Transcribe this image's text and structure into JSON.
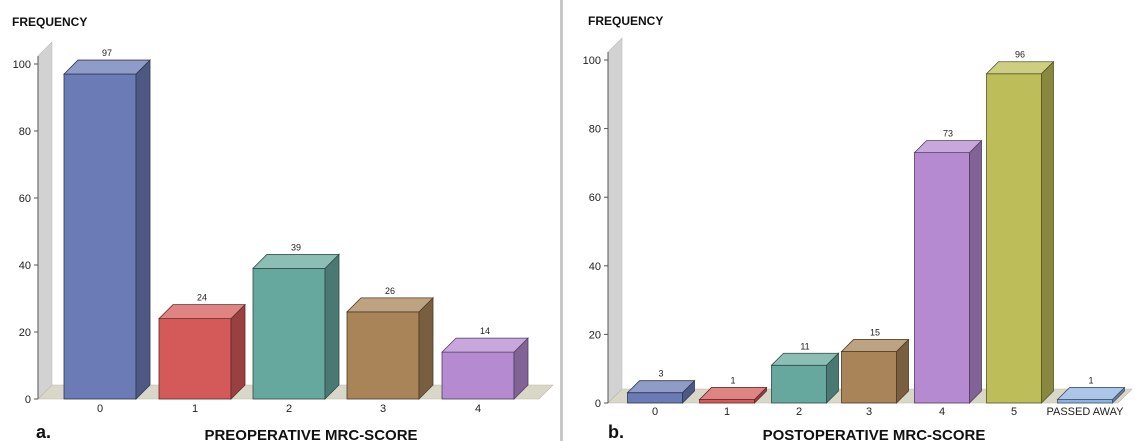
{
  "chart_data": [
    {
      "type": "bar",
      "panel_label": "a.",
      "title": "",
      "xlabel": "PREOPERATIVE MRC-SCORE",
      "ylabel": "FREQUENCY",
      "categories": [
        "0",
        "1",
        "2",
        "3",
        "4"
      ],
      "values": [
        97,
        24,
        39,
        26,
        14
      ],
      "data_labels": [
        "97",
        "24",
        "39",
        "26",
        "14"
      ],
      "colors": [
        "#6b7bb5",
        "#d45a5a",
        "#66a89e",
        "#a88458",
        "#b58ad1"
      ],
      "ylim": [
        0,
        100
      ],
      "yticks": [
        0,
        20,
        40,
        60,
        80,
        100
      ],
      "ytick_labels": [
        "0",
        "20",
        "40",
        "60",
        "80",
        "100"
      ],
      "grid": false,
      "style": "3d-bar"
    },
    {
      "type": "bar",
      "panel_label": "b.",
      "title": "",
      "xlabel": "POSTOPERATIVE MRC-SCORE",
      "ylabel": "FREQUENCY",
      "categories": [
        "0",
        "1",
        "2",
        "3",
        "4",
        "5",
        "PASSED AWAY"
      ],
      "values": [
        3,
        1,
        11,
        15,
        73,
        96,
        1
      ],
      "data_labels": [
        "3",
        "1",
        "11",
        "15",
        "73",
        "96",
        "1"
      ],
      "colors": [
        "#6b7bb5",
        "#d45a5a",
        "#66a89e",
        "#a88458",
        "#b58ad1",
        "#bdbd5a",
        "#8fb3e0"
      ],
      "ylim": [
        0,
        100
      ],
      "yticks": [
        0,
        20,
        40,
        60,
        80,
        100
      ],
      "ytick_labels": [
        "0",
        "20",
        "40",
        "60",
        "80",
        "100"
      ],
      "grid": false,
      "style": "3d-bar"
    }
  ]
}
